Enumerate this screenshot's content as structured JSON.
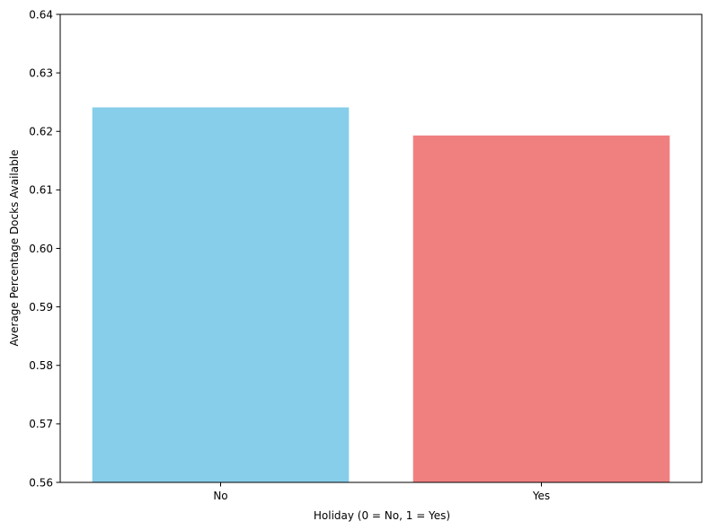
{
  "chart_data": {
    "type": "bar",
    "title": "",
    "xlabel": "Holiday (0 = No, 1 = Yes)",
    "ylabel": "Average Percentage Docks Available",
    "categories": [
      "No",
      "Yes"
    ],
    "values": [
      0.6241,
      0.6193
    ],
    "colors": [
      "#87CEEB",
      "#F08080"
    ],
    "ylim": [
      0.56,
      0.64
    ],
    "yticks": [
      "0.56",
      "0.57",
      "0.58",
      "0.59",
      "0.60",
      "0.61",
      "0.62",
      "0.63",
      "0.64"
    ],
    "grid": false,
    "legend": "none"
  }
}
